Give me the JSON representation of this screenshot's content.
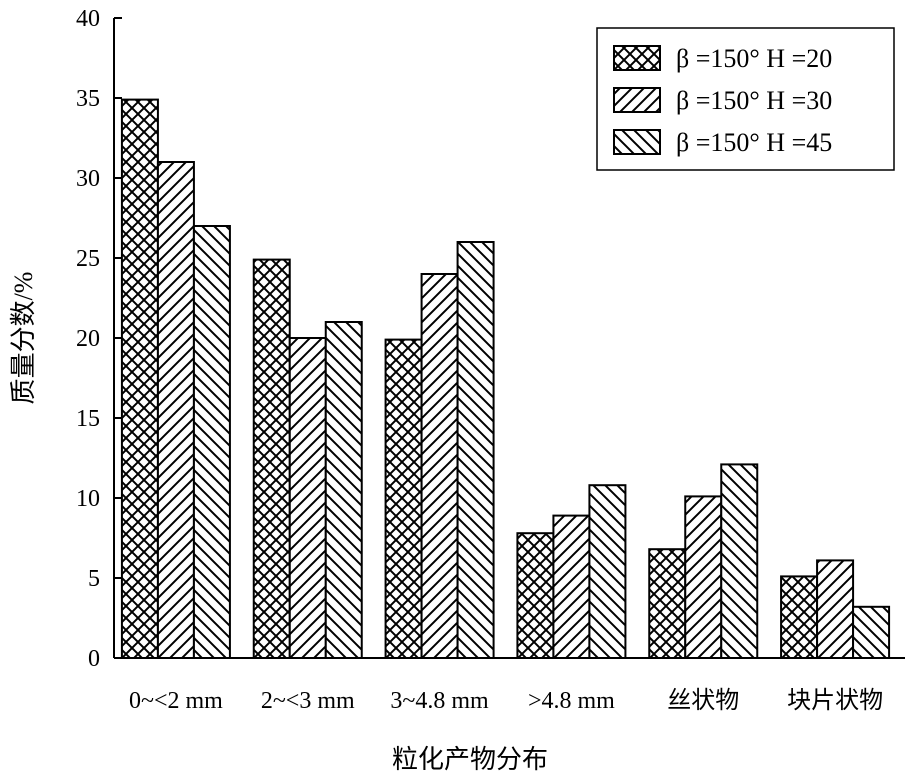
{
  "chart_data": {
    "type": "bar",
    "title": "",
    "xlabel": "粒化产物分布",
    "ylabel": "质量分数/%",
    "ylim": [
      0,
      40
    ],
    "yticks": [
      0,
      5,
      10,
      15,
      20,
      25,
      30,
      35,
      40
    ],
    "categories": [
      "0~<2 mm",
      "2~<3 mm",
      "3~4.8 mm",
      ">4.8 mm",
      "丝状物",
      "块片状物"
    ],
    "series": [
      {
        "name": "β =150° H =20",
        "pattern": "crosshatch",
        "values": [
          34.9,
          24.9,
          19.9,
          7.8,
          6.8,
          5.1
        ]
      },
      {
        "name": "β =150° H =30",
        "pattern": "forward-diagonal",
        "values": [
          31.0,
          20.0,
          24.0,
          8.9,
          10.1,
          6.1
        ]
      },
      {
        "name": "β =150° H =45",
        "pattern": "backward-diagonal",
        "values": [
          27.0,
          21.0,
          26.0,
          10.8,
          12.1,
          3.2
        ]
      }
    ],
    "legend_position": "top-right",
    "grid": false,
    "colors": {
      "bar_fill": "#ffffff",
      "stroke": "#000000"
    }
  }
}
